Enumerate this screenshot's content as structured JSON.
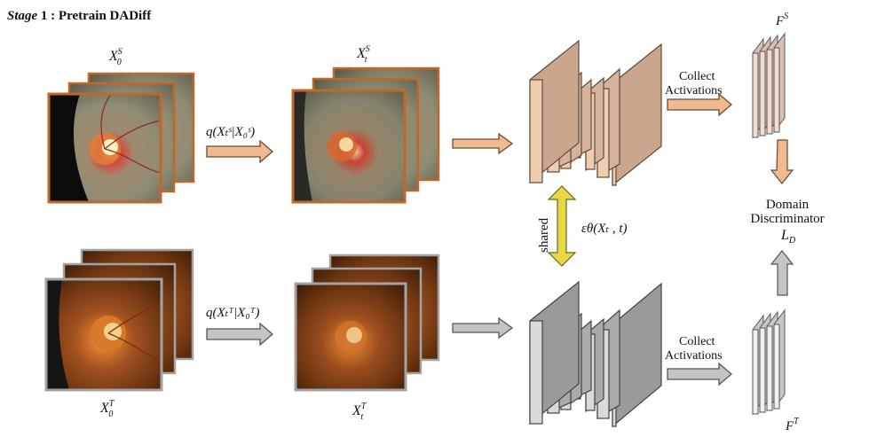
{
  "title": {
    "stage_word": "Stage",
    "rest": " 1 : Pretrain DADiff"
  },
  "labels": {
    "x0s_base": "X",
    "x0s_sup": "S",
    "x0s_sub": "0",
    "xts_base": "X",
    "xts_sup": "S",
    "xts_sub": "t",
    "x0t_base": "X",
    "x0t_sup": "T",
    "x0t_sub": "0",
    "xtt_base": "X",
    "xtt_sup": "T",
    "xtt_sub": "t",
    "q_source": "q(Xₜˢ|X₀ˢ)",
    "q_target": "q(Xₜᵀ|X₀ᵀ)",
    "shared": "shared",
    "epsilon": "εθ(Xₜ , t)",
    "collect_1": "Collect",
    "activations_1": "Activations",
    "collect_2": "Collect",
    "activations_2": "Activations",
    "fs_base": "F",
    "fs_sup": "S",
    "ft_base": "F",
    "ft_sup": "T",
    "domain": "Domain",
    "discriminator": "Discriminator",
    "ld_base": "L",
    "ld_sub": "D"
  },
  "colors": {
    "source_frame": "#c0672a",
    "target_frame": "#a3a3a3",
    "source_arrow": "#f0b990",
    "source_arrow_stroke": "#6b4a33",
    "target_arrow": "#c4c4c4",
    "target_arrow_stroke": "#555555",
    "shared_arrow": "#e8d845",
    "unet_source_front": "#f1cdb0",
    "unet_source_side": "#c9a68c",
    "unet_target_front": "#dadada",
    "unet_target_side": "#9a9a9a",
    "fs_front": "#f4dcd0",
    "ft_front": "#f0f0f0"
  }
}
